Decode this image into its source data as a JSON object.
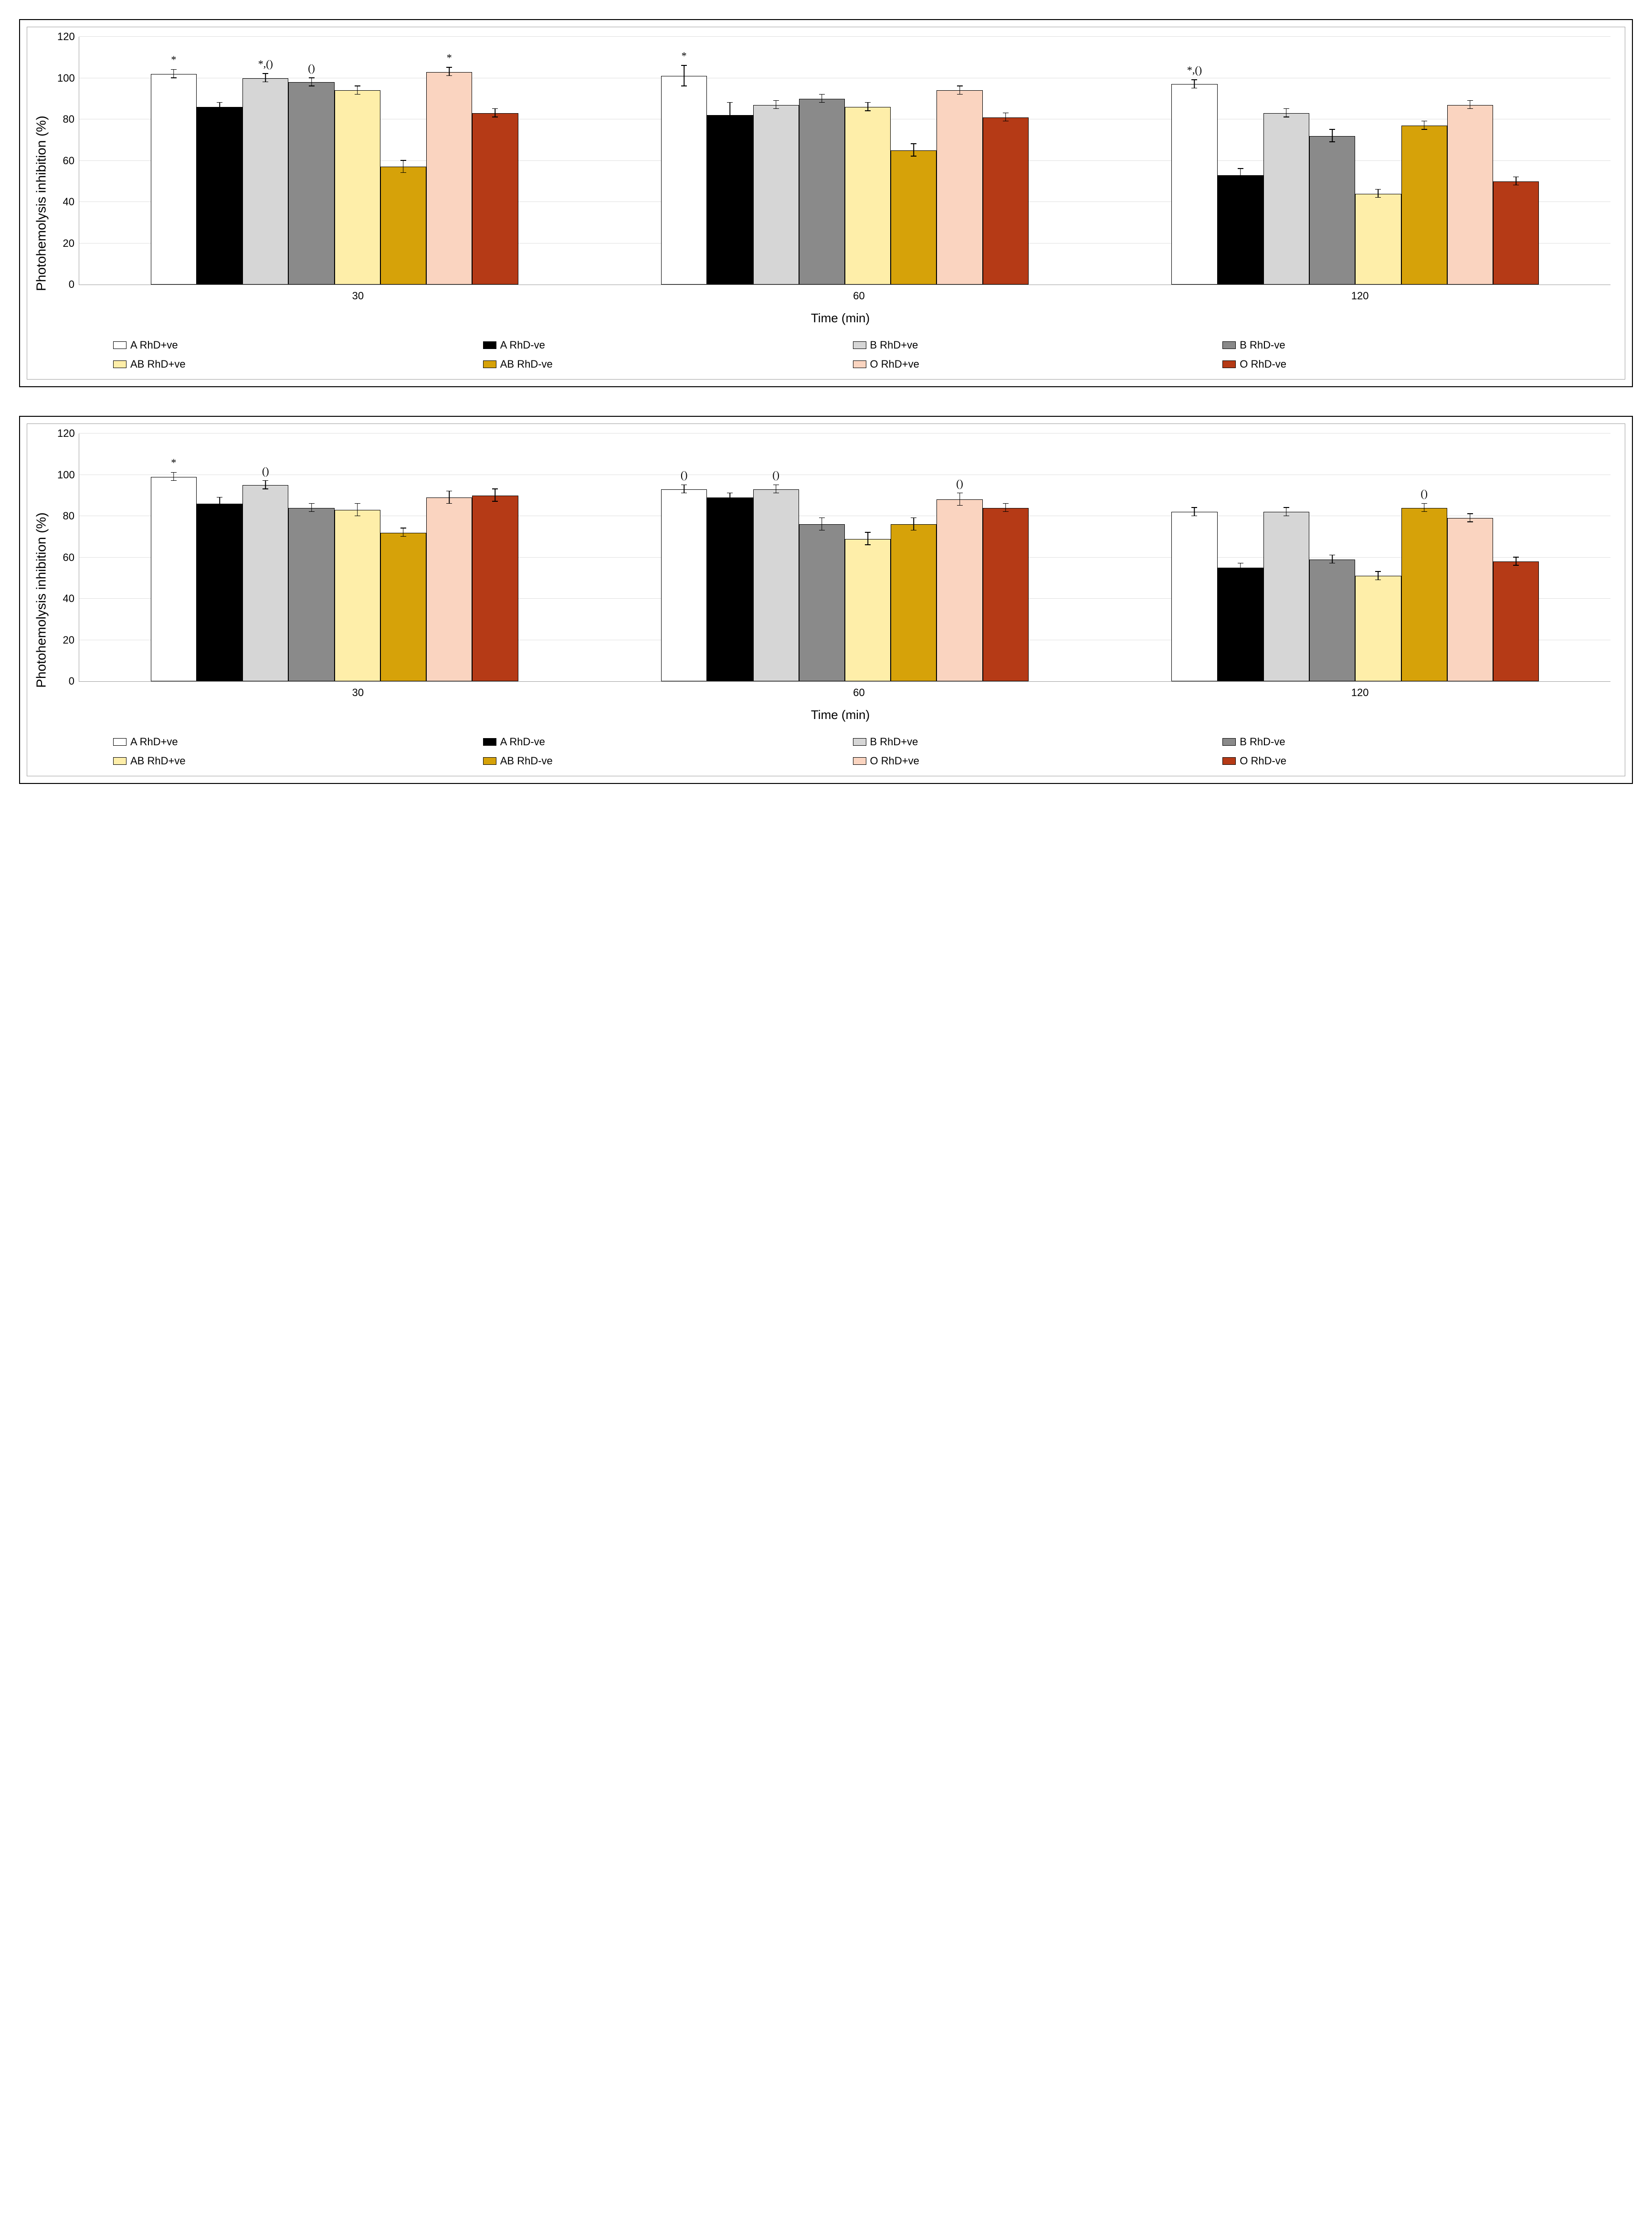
{
  "series": [
    {
      "key": "A_pos",
      "label": "A RhD+ve",
      "color": "#ffffff"
    },
    {
      "key": "A_neg",
      "label": "A RhD-ve",
      "color": "#000000"
    },
    {
      "key": "B_pos",
      "label": "B RhD+ve",
      "color": "#d6d6d6"
    },
    {
      "key": "B_neg",
      "label": "B RhD-ve",
      "color": "#8a8a8a"
    },
    {
      "key": "AB_pos",
      "label": "AB RhD+ve",
      "color": "#feeea9"
    },
    {
      "key": "AB_neg",
      "label": "AB RhD-ve",
      "color": "#d6a209"
    },
    {
      "key": "O_pos",
      "label": "O RhD+ve",
      "color": "#fad4c0"
    },
    {
      "key": "O_neg",
      "label": "O RhD-ve",
      "color": "#b53a16"
    }
  ],
  "axis": {
    "ylabel": "Photohemolysis inhibition (%)",
    "xlabel": "Time (min)",
    "ylim": [
      0,
      120
    ],
    "yticks": [
      0,
      20,
      40,
      60,
      80,
      100,
      120
    ],
    "categories": [
      "30",
      "60",
      "120"
    ],
    "grid_color": "#e0e0e0",
    "border_color": "#a0a0a0",
    "label_fontsize": 26,
    "tick_fontsize": 22
  },
  "panels": [
    {
      "groups": [
        {
          "cat": "30",
          "bars": [
            {
              "s": "A_pos",
              "v": 102,
              "e": 2,
              "a": "*"
            },
            {
              "s": "A_neg",
              "v": 86,
              "e": 2
            },
            {
              "s": "B_pos",
              "v": 100,
              "e": 2,
              "a": "*,()"
            },
            {
              "s": "B_neg",
              "v": 98,
              "e": 2,
              "a": "()"
            },
            {
              "s": "AB_pos",
              "v": 94,
              "e": 2
            },
            {
              "s": "AB_neg",
              "v": 57,
              "e": 3
            },
            {
              "s": "O_pos",
              "v": 103,
              "e": 2,
              "a": "*"
            },
            {
              "s": "O_neg",
              "v": 83,
              "e": 2
            }
          ]
        },
        {
          "cat": "60",
          "bars": [
            {
              "s": "A_pos",
              "v": 101,
              "e": 5,
              "a": "*"
            },
            {
              "s": "A_neg",
              "v": 82,
              "e": 6
            },
            {
              "s": "B_pos",
              "v": 87,
              "e": 2
            },
            {
              "s": "B_neg",
              "v": 90,
              "e": 2
            },
            {
              "s": "AB_pos",
              "v": 86,
              "e": 2
            },
            {
              "s": "AB_neg",
              "v": 65,
              "e": 3
            },
            {
              "s": "O_pos",
              "v": 94,
              "e": 2
            },
            {
              "s": "O_neg",
              "v": 81,
              "e": 2
            }
          ]
        },
        {
          "cat": "120",
          "bars": [
            {
              "s": "A_pos",
              "v": 97,
              "e": 2,
              "a": "*,()"
            },
            {
              "s": "A_neg",
              "v": 53,
              "e": 3
            },
            {
              "s": "B_pos",
              "v": 83,
              "e": 2
            },
            {
              "s": "B_neg",
              "v": 72,
              "e": 3
            },
            {
              "s": "AB_pos",
              "v": 44,
              "e": 2
            },
            {
              "s": "AB_neg",
              "v": 77,
              "e": 2
            },
            {
              "s": "O_pos",
              "v": 87,
              "e": 2
            },
            {
              "s": "O_neg",
              "v": 50,
              "e": 2
            }
          ]
        }
      ]
    },
    {
      "groups": [
        {
          "cat": "30",
          "bars": [
            {
              "s": "A_pos",
              "v": 99,
              "e": 2,
              "a": "*"
            },
            {
              "s": "A_neg",
              "v": 86,
              "e": 3
            },
            {
              "s": "B_pos",
              "v": 95,
              "e": 2,
              "a": "()"
            },
            {
              "s": "B_neg",
              "v": 84,
              "e": 2
            },
            {
              "s": "AB_pos",
              "v": 83,
              "e": 3
            },
            {
              "s": "AB_neg",
              "v": 72,
              "e": 2
            },
            {
              "s": "O_pos",
              "v": 89,
              "e": 3
            },
            {
              "s": "O_neg",
              "v": 90,
              "e": 3
            }
          ]
        },
        {
          "cat": "60",
          "bars": [
            {
              "s": "A_pos",
              "v": 93,
              "e": 2,
              "a": "()"
            },
            {
              "s": "A_neg",
              "v": 89,
              "e": 2
            },
            {
              "s": "B_pos",
              "v": 93,
              "e": 2,
              "a": "()"
            },
            {
              "s": "B_neg",
              "v": 76,
              "e": 3
            },
            {
              "s": "AB_pos",
              "v": 69,
              "e": 3
            },
            {
              "s": "AB_neg",
              "v": 76,
              "e": 3
            },
            {
              "s": "O_pos",
              "v": 88,
              "e": 3,
              "a": "()"
            },
            {
              "s": "O_neg",
              "v": 84,
              "e": 2
            }
          ]
        },
        {
          "cat": "120",
          "bars": [
            {
              "s": "A_pos",
              "v": 82,
              "e": 2
            },
            {
              "s": "A_neg",
              "v": 55,
              "e": 2
            },
            {
              "s": "B_pos",
              "v": 82,
              "e": 2
            },
            {
              "s": "B_neg",
              "v": 59,
              "e": 2
            },
            {
              "s": "AB_pos",
              "v": 51,
              "e": 2
            },
            {
              "s": "AB_neg",
              "v": 84,
              "e": 2,
              "a": "()"
            },
            {
              "s": "O_pos",
              "v": 79,
              "e": 2
            },
            {
              "s": "O_neg",
              "v": 58,
              "e": 2
            }
          ]
        }
      ]
    }
  ]
}
